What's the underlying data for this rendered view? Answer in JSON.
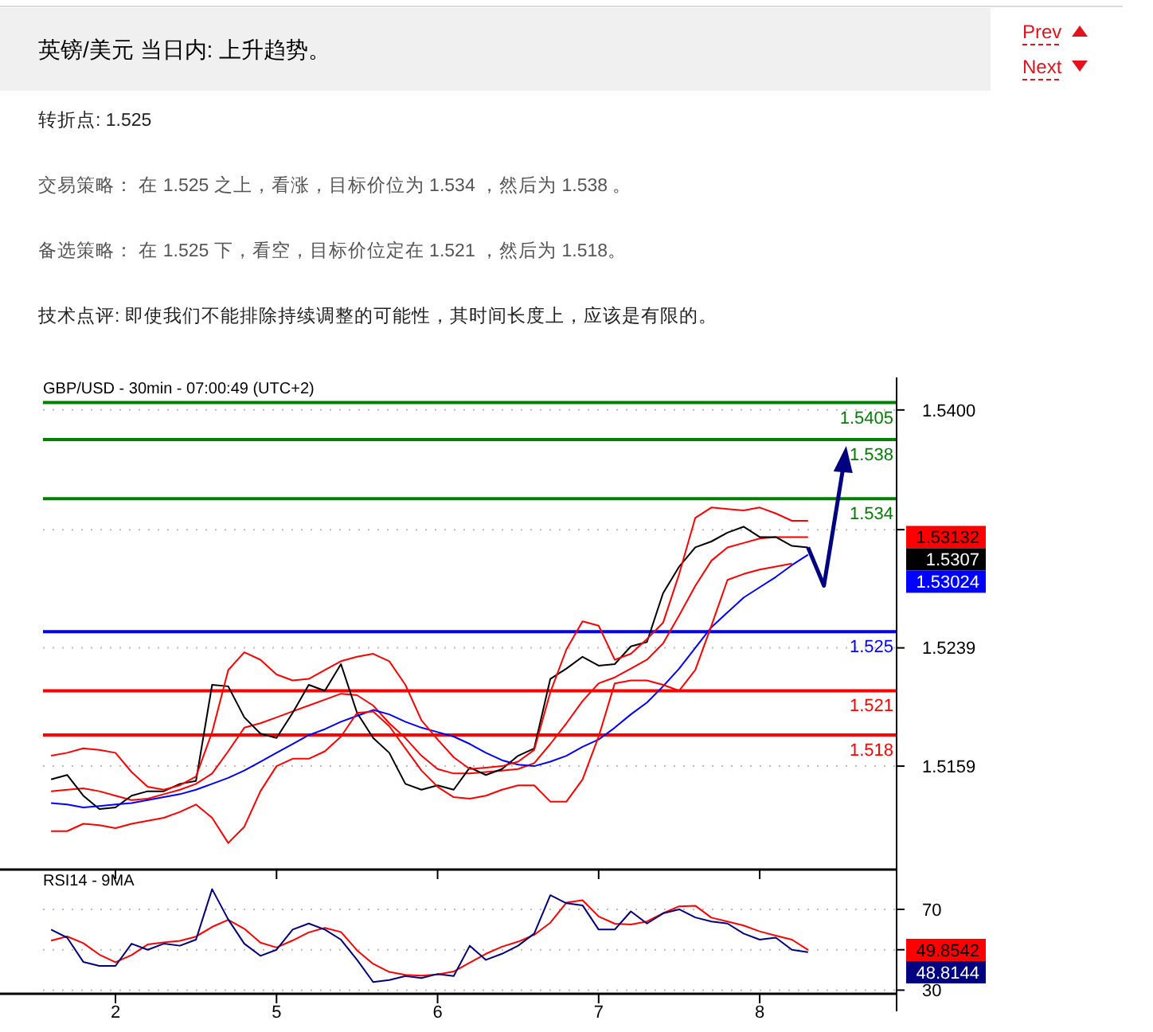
{
  "chart_data": [
    {
      "type": "other",
      "title": "英镑/美元 当日内: 上升趋势。",
      "annotations": [
        "Prev",
        "Next",
        "转折点: 1.525",
        "交易策略： 在 1.525 之上，看涨，目标价位为 1.534 ，然后为 1.538 。",
        "备选策略： 在 1.525 下，看空，目标价位定在 1.521 ，然后为 1.518。",
        "技术点评: 即使我们不能排除持续调整的可能性，其时间长度上，应该是有限的。"
      ]
    },
    {
      "type": "line",
      "title": "GBP/USD - 30min - 07:00:49 (UTC+2)",
      "annotations": [
        "1.53132",
        "1.5307",
        "1.53024"
      ],
      "categories": [
        null,
        null,
        null,
        null,
        "2",
        null,
        null,
        null,
        null,
        null,
        null,
        null,
        null,
        null,
        "5",
        null,
        null,
        null,
        null,
        null,
        null,
        null,
        null,
        null,
        "6",
        null,
        null,
        null,
        null,
        null,
        null,
        null,
        null,
        null,
        "7",
        null,
        null,
        null,
        null,
        null,
        null,
        null,
        null,
        null,
        "8",
        null,
        null,
        null,
        null,
        null,
        null,
        null,
        null
      ],
      "ylim": [
        1.5089,
        1.5422
      ],
      "yticks": [
        {
          "value": 1.54,
          "label": "1.5400"
        },
        {
          "value": 1.5319,
          "label": null
        },
        1.5239,
        1.5159
      ],
      "tick_labels": "y",
      "grid": "y",
      "marker": "none",
      "ref_lines": [
        {
          "axis": "y",
          "value": 1.5405,
          "label": "1.5405",
          "color": "#008000"
        },
        {
          "axis": "y",
          "value": 1.538,
          "label": "1.538",
          "color": "#008000"
        },
        {
          "axis": "y",
          "value": 1.534,
          "label": "1.534",
          "color": "#008000"
        },
        {
          "axis": "y",
          "value": 1.525,
          "label": "1.525",
          "color": "#0000ff"
        },
        {
          "axis": "y",
          "value": 1.521,
          "label": "1.521",
          "color": "#ff0000"
        },
        {
          "axis": "y",
          "value": 1.518,
          "label": "1.518",
          "color": "#ff0000"
        }
      ],
      "series": [
        {
          "color": "#ff0000",
          "values": [
            1.5142,
            1.5143,
            1.5144,
            1.5142,
            1.5139,
            1.5136,
            1.5137,
            1.514,
            1.5143,
            1.5147,
            1.5154,
            1.5169,
            1.5185,
            1.5188,
            1.5192,
            1.5196,
            1.52,
            1.5204,
            1.5208,
            1.5207,
            1.52,
            1.5188,
            1.5178,
            1.5166,
            1.5157,
            1.5154,
            1.5154,
            1.5155,
            1.5156,
            1.5157,
            1.5161,
            1.5174,
            1.5188,
            1.5203,
            1.5215,
            1.5219,
            1.5225,
            1.5231,
            1.5242,
            1.5261,
            1.5281,
            1.5298,
            1.5307,
            1.531,
            1.5313,
            1.5314,
            1.5314,
            1.5314,
            null,
            null,
            null,
            null,
            null
          ]
        },
        {
          "color": "#000000",
          "values": [
            1.515,
            1.5153,
            1.5139,
            1.513,
            1.5131,
            1.5139,
            1.5142,
            1.5142,
            1.5147,
            1.5149,
            1.5214,
            1.5213,
            1.5192,
            1.5181,
            1.5178,
            1.5195,
            1.5214,
            1.521,
            1.5228,
            1.5195,
            1.5178,
            1.5168,
            1.5147,
            1.5143,
            1.5146,
            1.5143,
            1.5158,
            1.5153,
            1.5157,
            1.5166,
            1.5171,
            1.5218,
            1.5225,
            1.5233,
            1.5227,
            1.5228,
            1.524,
            1.5243,
            1.5276,
            1.5294,
            1.5307,
            1.5311,
            1.5317,
            1.5321,
            1.5314,
            1.5314,
            1.5308,
            1.5307,
            null,
            null,
            null,
            null,
            null
          ]
        },
        {
          "color": "#0000ff",
          "values": [
            1.5134,
            1.5133,
            1.5131,
            1.5132,
            1.5133,
            1.5134,
            1.5136,
            1.5138,
            1.514,
            1.5143,
            1.5147,
            1.5151,
            1.5156,
            1.5162,
            1.5168,
            1.5174,
            1.518,
            1.5184,
            1.5189,
            1.5193,
            1.5197,
            1.5194,
            1.5189,
            1.5185,
            1.5182,
            1.5179,
            1.5174,
            1.5168,
            1.5163,
            1.516,
            1.5159,
            1.5162,
            1.5166,
            1.5172,
            1.5177,
            1.5185,
            1.5194,
            1.5202,
            1.5213,
            1.5225,
            1.5239,
            1.5253,
            1.5263,
            1.5273,
            1.528,
            1.5287,
            1.5295,
            1.5302,
            null,
            null,
            null,
            null,
            null
          ]
        },
        {
          "color": "#ff0000",
          "values": [
            1.5166,
            1.5168,
            1.5171,
            1.517,
            1.5168,
            1.5155,
            1.5145,
            1.5143,
            1.5146,
            1.5152,
            1.5182,
            1.5224,
            1.5236,
            1.5231,
            1.5221,
            1.5217,
            1.5218,
            1.5224,
            1.523,
            1.5233,
            1.5235,
            1.523,
            1.5214,
            1.519,
            1.5177,
            1.5165,
            1.5157,
            1.5158,
            1.5159,
            1.5162,
            1.517,
            1.5209,
            1.5238,
            1.5257,
            1.5254,
            1.5231,
            1.5235,
            1.5245,
            1.5256,
            1.5289,
            1.5327,
            1.5334,
            1.5333,
            1.5332,
            1.5334,
            1.533,
            1.5325,
            1.5325,
            null,
            null,
            null,
            null,
            null
          ]
        },
        {
          "color": "#ff0000",
          "values": [
            1.5115,
            1.5115,
            1.512,
            1.5119,
            1.5117,
            1.512,
            1.5122,
            1.5124,
            1.5128,
            1.5133,
            1.5124,
            1.5107,
            1.5118,
            1.5142,
            1.5159,
            1.5164,
            1.5164,
            1.5169,
            1.5179,
            1.5195,
            1.5196,
            1.5186,
            1.5171,
            1.5156,
            1.5145,
            1.5138,
            1.5137,
            1.5139,
            1.5143,
            1.5146,
            1.5146,
            1.5135,
            1.5135,
            1.515,
            1.5179,
            1.5215,
            1.5217,
            1.5217,
            1.5214,
            1.521,
            1.5224,
            1.5254,
            1.5285,
            1.5289,
            1.5292,
            1.5294,
            1.5296,
            null,
            null,
            null,
            null,
            null,
            null
          ]
        }
      ]
    },
    {
      "type": "line",
      "title": "RSI14 - 9MA",
      "annotations": [
        "49.8542",
        "48.8144"
      ],
      "categories": [
        null,
        null,
        null,
        null,
        "2",
        null,
        null,
        null,
        null,
        null,
        null,
        null,
        null,
        null,
        "5",
        null,
        null,
        null,
        null,
        null,
        null,
        null,
        null,
        null,
        "6",
        null,
        null,
        null,
        null,
        null,
        null,
        null,
        null,
        null,
        "7",
        null,
        null,
        null,
        null,
        null,
        null,
        null,
        null,
        null,
        "8",
        null,
        null,
        null,
        null,
        null,
        null,
        null,
        null
      ],
      "ylim": [
        28.2,
        89.7
      ],
      "yticks": [
        70,
        {
          "value": 50,
          "label": null
        },
        30
      ],
      "grid": "y",
      "marker": "none",
      "series": [
        {
          "color": "#ff0000",
          "values": [
            54.5,
            56.6,
            53.3,
            47.6,
            43.8,
            47.4,
            52.6,
            53.6,
            54.4,
            56.5,
            61.3,
            64.8,
            60.4,
            53.5,
            51.1,
            54.6,
            58.6,
            60.8,
            58.8,
            49.7,
            43.0,
            39.0,
            37.6,
            37.2,
            37.8,
            39.2,
            43.6,
            48.0,
            51.5,
            54.0,
            57.4,
            63.4,
            73.3,
            74.5,
            66.5,
            62.9,
            62.5,
            64.0,
            68.1,
            71.5,
            71.8,
            65.9,
            64.0,
            62.0,
            59.1,
            57.0,
            55.0,
            49.9,
            null,
            null,
            null,
            null,
            null
          ]
        },
        {
          "color": "#000080",
          "values": [
            60,
            56,
            44,
            42,
            42,
            53,
            50,
            53,
            52,
            55,
            80,
            65,
            53,
            47,
            50,
            60,
            63,
            60,
            55,
            45,
            34,
            35,
            37,
            36,
            38,
            37,
            52,
            45,
            48,
            52,
            58,
            77,
            73,
            72,
            60,
            60,
            69,
            63,
            68,
            70,
            66,
            64,
            63,
            58,
            55,
            56,
            50,
            48.8,
            null,
            null,
            null,
            null,
            null
          ]
        }
      ]
    }
  ]
}
